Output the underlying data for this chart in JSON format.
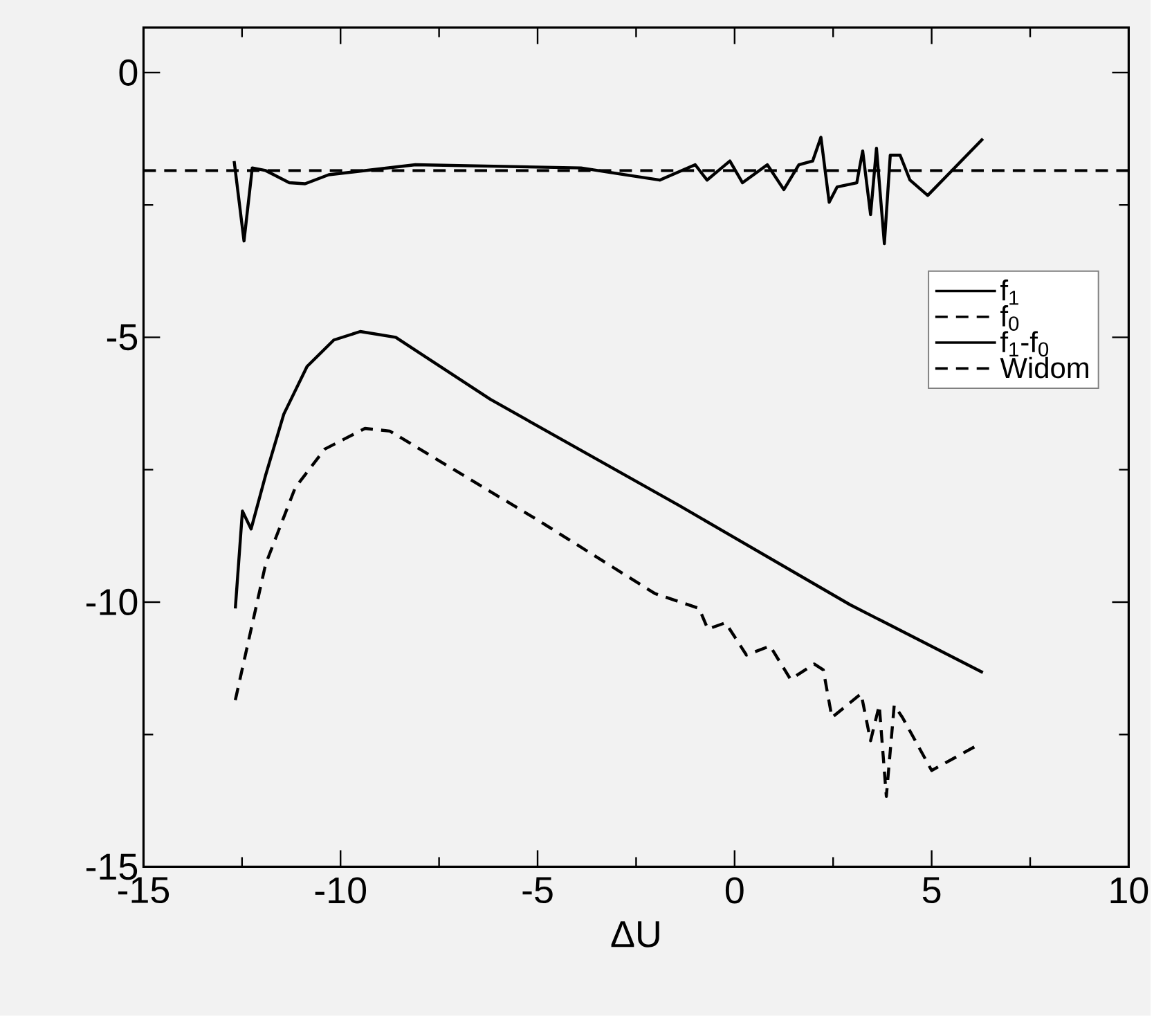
{
  "chart_data": {
    "type": "line",
    "xlabel": "ΔU",
    "xlim": [
      -15,
      10
    ],
    "xticks": [
      -15,
      -10,
      -5,
      0,
      5,
      10
    ],
    "ylim": [
      -15,
      0.85
    ],
    "yticks": [
      -15,
      -10,
      -5,
      0
    ],
    "legend": "right",
    "marker": "none",
    "grid": false,
    "series": [
      {
        "name": "f$_{1}$",
        "color": "#000000",
        "line_style": "solid",
        "x": [
          -12.67,
          -12.49,
          -12.27,
          -11.9,
          -11.44,
          -10.85,
          -10.17,
          -9.5,
          -8.6,
          -6.2,
          -1.4,
          2.93,
          6.3
        ],
        "values": [
          -10.12,
          -8.28,
          -8.62,
          -7.6,
          -6.45,
          -5.55,
          -5.05,
          -4.89,
          -5.0,
          -6.17,
          -8.18,
          -10.05,
          -11.33
        ]
      },
      {
        "name": "f$_{0}$",
        "color": "#000000",
        "line_style": "dashed",
        "x": [
          -12.67,
          -11.9,
          -11.15,
          -10.4,
          -9.38,
          -8.75,
          -5.02,
          -2.02,
          -0.9,
          -0.68,
          -0.23,
          0.3,
          0.9,
          1.42,
          2.02,
          2.25,
          2.47,
          3.21,
          3.45,
          3.67,
          3.85,
          4.05,
          4.26,
          5.0,
          6.22
        ],
        "values": [
          -11.85,
          -9.28,
          -7.84,
          -7.11,
          -6.72,
          -6.77,
          -8.44,
          -9.84,
          -10.12,
          -10.51,
          -10.39,
          -11.0,
          -10.83,
          -11.46,
          -11.17,
          -11.28,
          -12.18,
          -11.73,
          -12.62,
          -11.95,
          -13.67,
          -11.95,
          -12.18,
          -13.18,
          -12.68
        ]
      },
      {
        "name": "f$_{1}$-f$_{0}$",
        "color": "#000000",
        "line_style": "solid",
        "x": [
          -12.7,
          -12.45,
          -12.24,
          -11.9,
          -11.3,
          -10.9,
          -10.3,
          -8.1,
          -3.9,
          -1.9,
          -1.0,
          -0.7,
          -0.12,
          0.2,
          0.83,
          1.25,
          1.63,
          1.98,
          2.19,
          2.4,
          2.6,
          3.1,
          3.25,
          3.45,
          3.6,
          3.8,
          3.95,
          4.2,
          4.45,
          4.9,
          6.3
        ],
        "values": [
          -1.67,
          -3.18,
          -1.8,
          -1.85,
          -2.08,
          -2.1,
          -1.93,
          -1.74,
          -1.8,
          -2.03,
          -1.74,
          -2.03,
          -1.67,
          -2.08,
          -1.74,
          -2.21,
          -1.74,
          -1.67,
          -1.22,
          -2.45,
          -2.16,
          -2.08,
          -1.48,
          -2.68,
          -1.43,
          -3.23,
          -1.56,
          -1.56,
          -2.03,
          -2.32,
          -1.25
        ]
      },
      {
        "name": "Widom",
        "color": "#000000",
        "line_style": "dashed",
        "x": [
          -15,
          10
        ],
        "values": [
          -1.85,
          -1.85
        ]
      }
    ]
  }
}
